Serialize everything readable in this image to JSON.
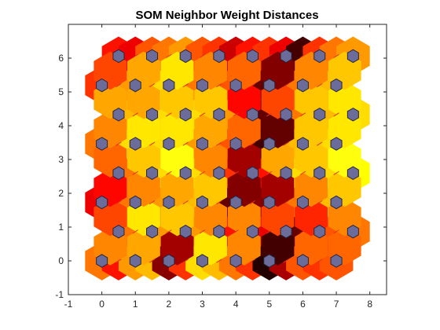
{
  "chart_data": {
    "type": "heatmap",
    "title": "SOM Neighbor Weight Distances",
    "xlabel": "",
    "ylabel": "",
    "xlim": [
      -1,
      8.5
    ],
    "ylim": [
      -1,
      7
    ],
    "xticks": [
      -1,
      0,
      1,
      2,
      3,
      4,
      5,
      6,
      7,
      8
    ],
    "yticks": [
      -1,
      0,
      1,
      2,
      3,
      4,
      5,
      6
    ],
    "grid": "off",
    "map_size": [
      8,
      8
    ],
    "layout": "hexagonal",
    "neuron_color": "#6c6c9a",
    "colormap": "hot",
    "distances_by_row": [
      [
        0.45,
        0.6,
        0.4,
        0.35,
        0.8,
        0.55,
        0.3,
        0.35,
        0.45,
        0.55,
        0.95,
        0.75,
        0.5,
        0.55,
        0.5
      ],
      [
        0.55,
        0.45,
        0.3,
        0.4,
        0.35,
        0.4,
        0.45,
        0.6,
        0.45,
        0.65,
        0.55,
        0.85,
        0.6,
        0.5,
        0.45
      ],
      [
        0.65,
        0.55,
        0.45,
        0.35,
        0.4,
        0.3,
        0.35,
        0.55,
        0.85,
        0.7,
        0.8,
        0.55,
        0.45,
        0.4,
        0.35
      ],
      [
        0.5,
        0.45,
        0.35,
        0.3,
        0.25,
        0.3,
        0.45,
        0.55,
        0.8,
        0.6,
        0.4,
        0.3,
        0.35,
        0.3,
        0.25
      ],
      [
        0.45,
        0.4,
        0.3,
        0.35,
        0.3,
        0.35,
        0.4,
        0.45,
        0.5,
        0.75,
        0.9,
        0.4,
        0.35,
        0.3,
        0.3
      ],
      [
        0.4,
        0.35,
        0.4,
        0.3,
        0.35,
        0.3,
        0.35,
        0.4,
        0.65,
        0.85,
        0.55,
        0.45,
        0.35,
        0.35,
        0.3
      ],
      [
        0.55,
        0.5,
        0.4,
        0.35,
        0.3,
        0.35,
        0.45,
        0.4,
        0.5,
        0.55,
        0.85,
        0.6,
        0.45,
        0.4,
        0.35
      ],
      [
        0.6,
        0.65,
        0.5,
        0.45,
        0.4,
        0.5,
        0.55,
        0.7,
        0.6,
        0.55,
        0.65,
        0.9,
        0.55,
        0.45,
        0.4
      ]
    ]
  },
  "colors": {
    "axes_line": "#262626",
    "neuron_edge": "#262640",
    "distance_line": "#e0321e"
  }
}
